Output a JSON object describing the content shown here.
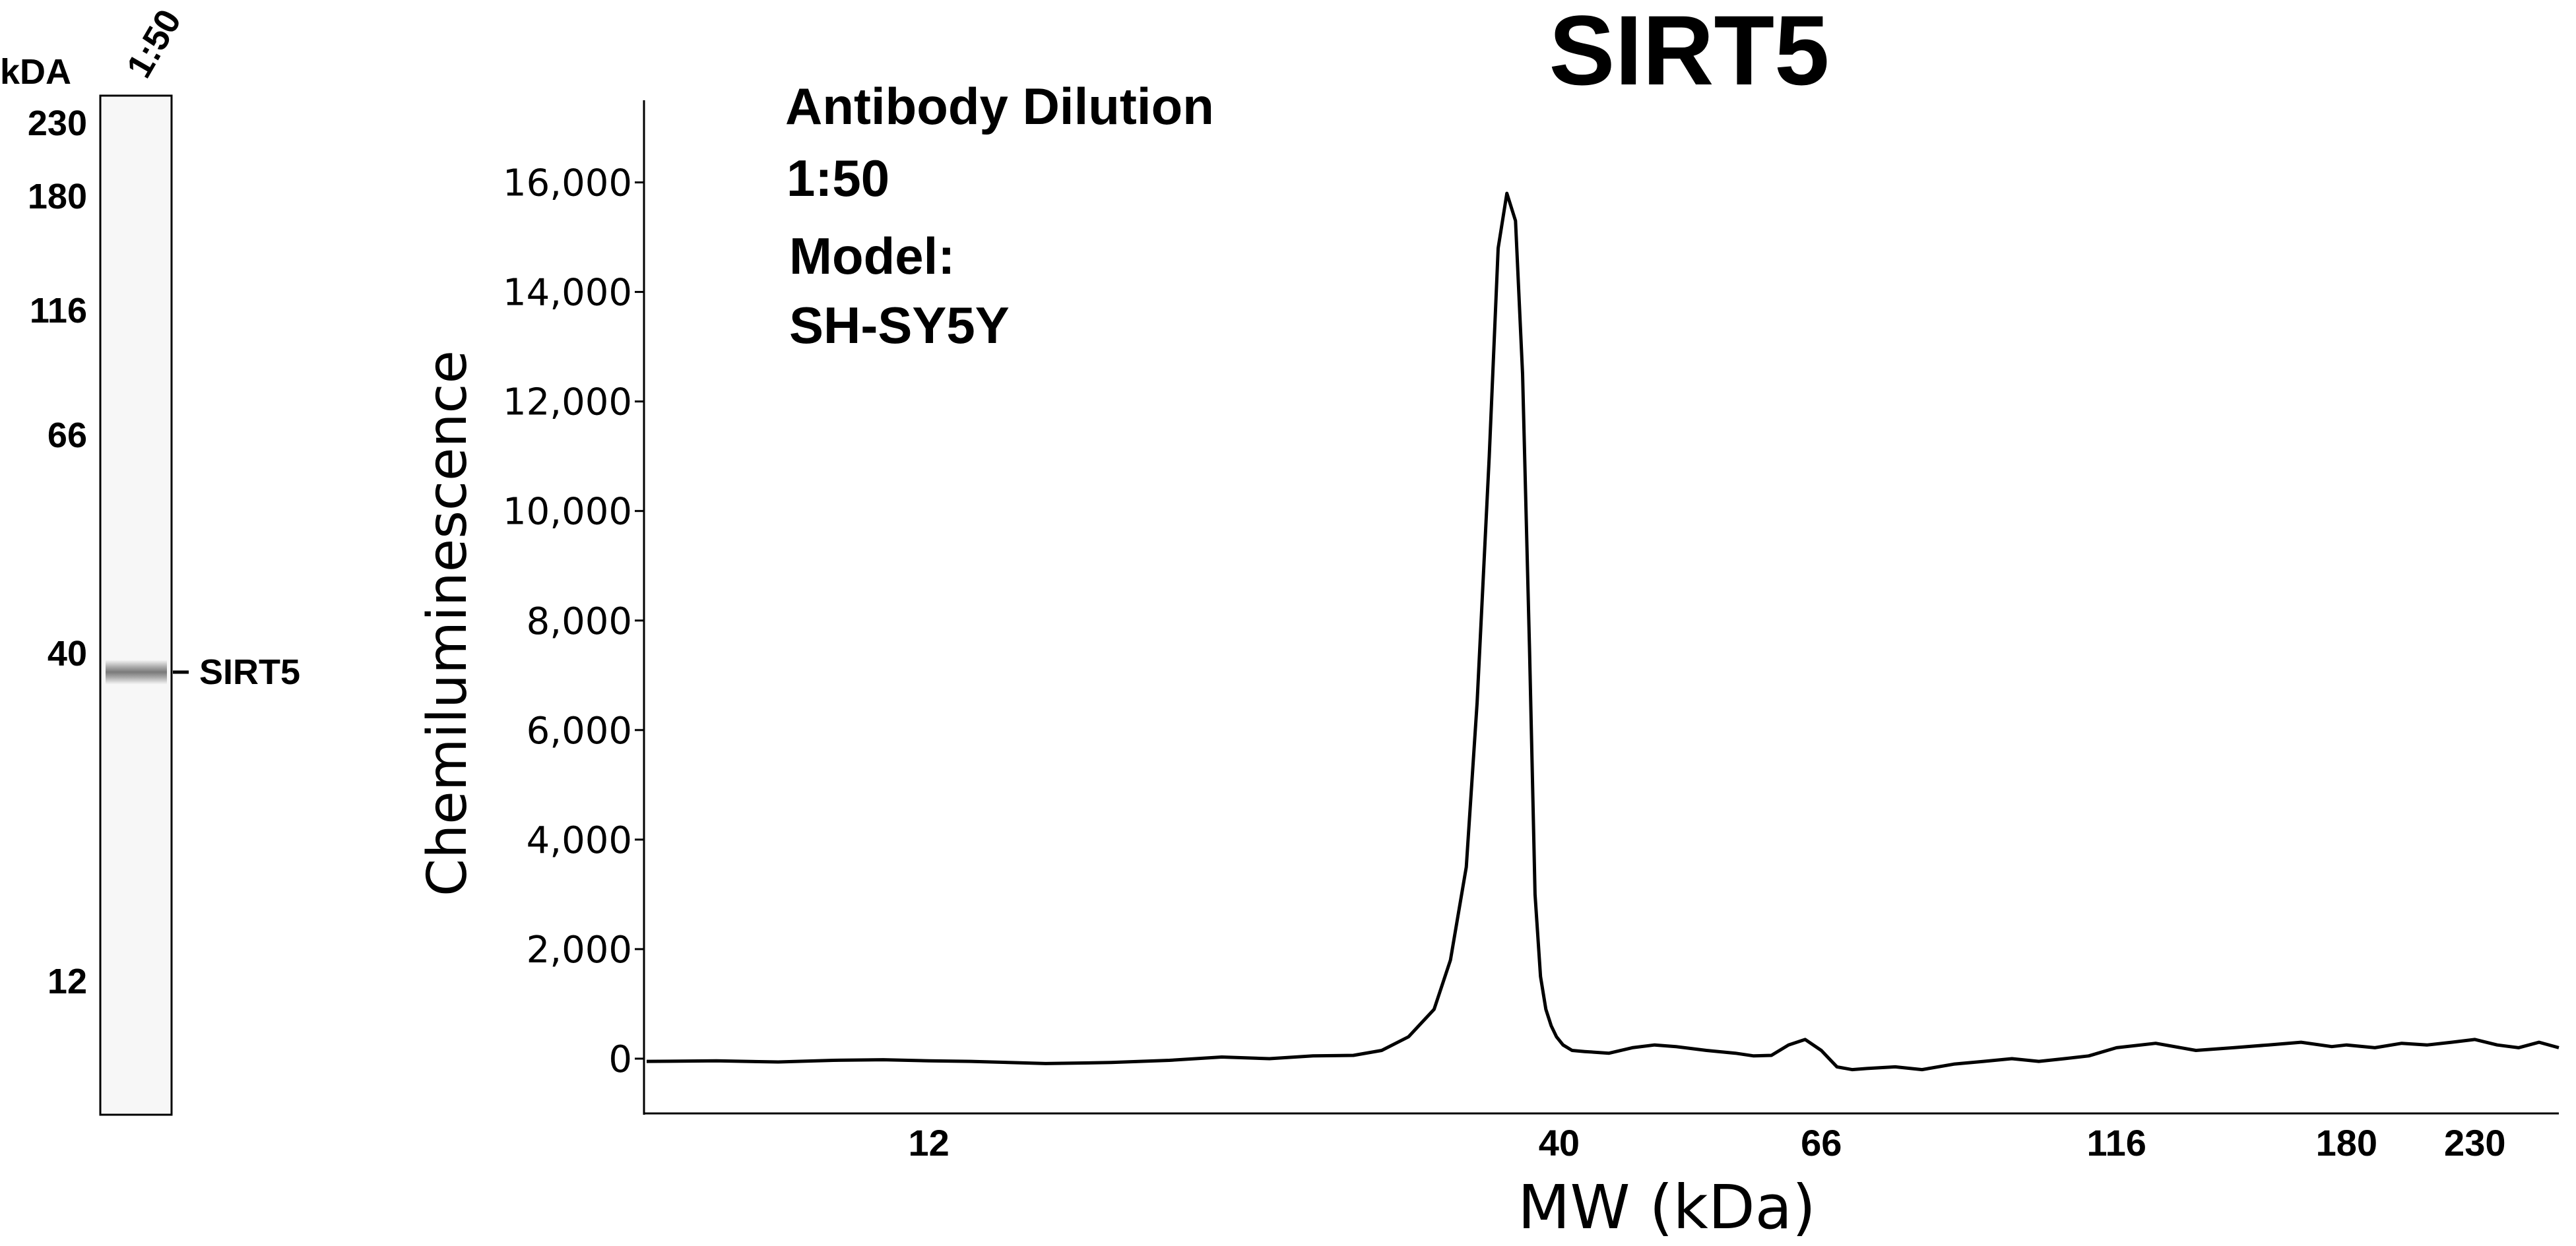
{
  "chart_data": [
    {
      "type": "gel-lane",
      "unit_label": "kDA",
      "lane_label": "1:50",
      "mw_markers": [
        "230",
        "180",
        "116",
        "66",
        "40",
        "12"
      ],
      "band": {
        "label": "SIRT5",
        "mw_kda": 38
      }
    },
    {
      "type": "line",
      "title": "SIRT5",
      "annotation": {
        "line1": "Antibody Dilution",
        "line2": "1:50",
        "line3": "Model:",
        "line4": "SH-SY5Y"
      },
      "xlabel": "MW (kDa)",
      "ylabel": "Chemiluminescence",
      "x_scale": "log",
      "x_ticks": [
        12,
        40,
        66,
        116,
        180,
        230
      ],
      "xlim": [
        7,
        270
      ],
      "ylim": [
        -1000,
        17500
      ],
      "y_ticks": [
        0,
        2000,
        4000,
        6000,
        8000,
        10000,
        12000,
        14000,
        16000
      ],
      "y_tick_labels": [
        "0",
        "2,000",
        "4,000",
        "6,000",
        "8,000",
        "10,000",
        "12,000",
        "14,000",
        "16,000"
      ],
      "series": [
        {
          "x": [
            7,
            8,
            9,
            10,
            11,
            12,
            13,
            15,
            17,
            19,
            21,
            23,
            25,
            27,
            28.5,
            30,
            31.5,
            32.5,
            33.5,
            34.2,
            35,
            35.6,
            36.2,
            36.8,
            37.3,
            37.8,
            38.2,
            38.6,
            39,
            39.4,
            39.8,
            40.3,
            41,
            42,
            44,
            46,
            48,
            50,
            53,
            56,
            58,
            60,
            62,
            64,
            66,
            68,
            70,
            72,
            76,
            80,
            85,
            90,
            95,
            100,
            105,
            110,
            116,
            125,
            135,
            145,
            155,
            165,
            175,
            180,
            190,
            200,
            210,
            220,
            230,
            240,
            250,
            260,
            270
          ],
          "y": [
            -50,
            -40,
            -60,
            -30,
            -20,
            -40,
            -50,
            -90,
            -70,
            -30,
            30,
            0,
            50,
            60,
            150,
            400,
            900,
            1800,
            3500,
            6500,
            11000,
            14800,
            15800,
            15300,
            12500,
            7500,
            3000,
            1500,
            900,
            600,
            400,
            250,
            150,
            130,
            100,
            200,
            250,
            220,
            150,
            100,
            50,
            60,
            250,
            350,
            150,
            -150,
            -200,
            -180,
            -150,
            -200,
            -100,
            -50,
            0,
            -50,
            0,
            50,
            200,
            280,
            150,
            200,
            250,
            300,
            220,
            250,
            200,
            280,
            250,
            300,
            350,
            250,
            200,
            300,
            200
          ]
        }
      ]
    }
  ]
}
